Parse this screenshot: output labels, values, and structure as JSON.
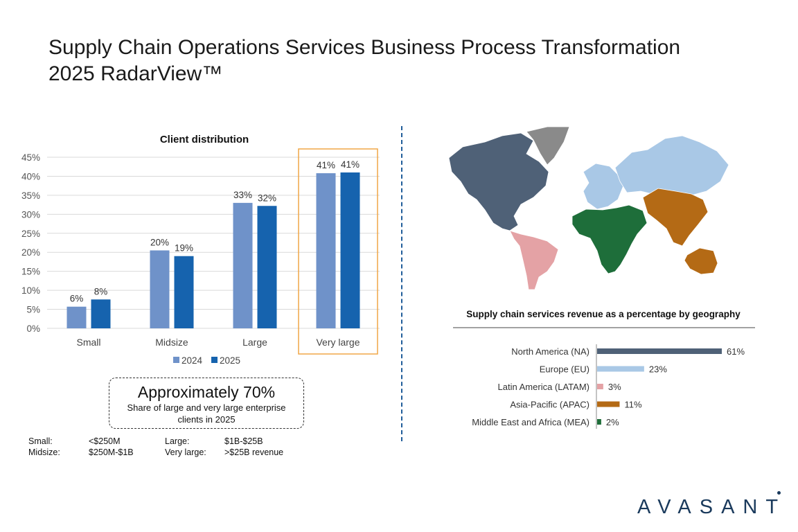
{
  "title": {
    "line1": "Supply Chain Operations Services Business Process Transformation",
    "line2": "2025 RadarView™"
  },
  "chart_data": [
    {
      "type": "bar",
      "title": "Client distribution",
      "categories": [
        "Small",
        "Midsize",
        "Large",
        "Very large"
      ],
      "series": [
        {
          "name": "2024",
          "values": [
            5.7,
            20.5,
            33,
            40.8
          ],
          "labels": [
            "6%",
            "20%",
            "33%",
            "41%"
          ],
          "color": "#6f92c9"
        },
        {
          "name": "2025",
          "values": [
            7.6,
            19,
            32.2,
            41
          ],
          "labels": [
            "8%",
            "19%",
            "32%",
            "41%"
          ],
          "color": "#1663ae"
        }
      ],
      "yticks": [
        "0%",
        "5%",
        "10%",
        "15%",
        "20%",
        "25%",
        "30%",
        "35%",
        "40%",
        "45%"
      ],
      "ylim": [
        0,
        45
      ],
      "grid": true,
      "legend": "bottom",
      "highlight_category": "Very large",
      "highlight_color": "#f0a646"
    },
    {
      "type": "bar",
      "orientation": "horizontal",
      "title": "Supply chain services revenue as a percentage by geography",
      "categories": [
        "North America (NA)",
        "Europe (EU)",
        "Latin America (LATAM)",
        "Asia-Pacific (APAC)",
        "Middle East and Africa (MEA)"
      ],
      "values": [
        61,
        23,
        3,
        11,
        2
      ],
      "labels": [
        "61%",
        "23%",
        "3%",
        "11%",
        "2%"
      ],
      "colors": [
        "#4f6177",
        "#a9c8e6",
        "#e4a2a5",
        "#b46a15",
        "#1e6e3a"
      ]
    }
  ],
  "callout": {
    "headline": "Approximately 70%",
    "text_line1": "Share of large and very large enterprise",
    "text_line2": "clients in 2025"
  },
  "size_definitions": [
    {
      "label": "Small:",
      "value": "<$250M"
    },
    {
      "label": "Midsize:",
      "value": "$250M-$1B"
    },
    {
      "label": "Large:",
      "value": "$1B-$25B"
    },
    {
      "label": "Very large:",
      "value": ">$25B revenue"
    }
  ],
  "map": {
    "region_colors": {
      "north-america": "#4f6177",
      "greenland": "#8a8a8a",
      "europe": "#a9c8e6",
      "russia": "#a9c8e6",
      "latin-america": "#e4a2a5",
      "middle-east-africa": "#1e6e3a",
      "asia-pacific": "#b46a15"
    }
  },
  "logo": {
    "text": "AVASANT"
  }
}
